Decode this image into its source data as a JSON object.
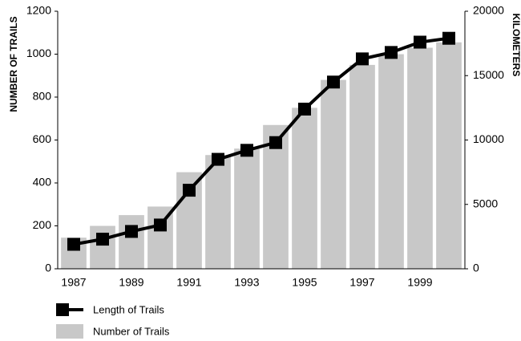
{
  "chart_data": {
    "type": "bar_line",
    "categories": [
      "1987",
      null,
      "1989",
      null,
      "1991",
      null,
      "1993",
      null,
      "1995",
      null,
      "1997",
      null,
      "1999",
      null
    ],
    "y_label": "NUMBER OF TRAILS",
    "y2_label": "KILOMETERS",
    "series": [
      {
        "name": "Length of Trails",
        "color": "#000000",
        "axis": "y2",
        "type": "line",
        "values": [
          1900,
          2300,
          2900,
          3400,
          6100,
          8500,
          9200,
          9800,
          12400,
          14500,
          16300,
          16800,
          17600,
          17900
        ]
      },
      {
        "name": "Number of Trails",
        "color": "#c8c8c8",
        "type": "bar",
        "values": [
          145,
          200,
          250,
          290,
          450,
          530,
          560,
          670,
          750,
          880,
          950,
          1000,
          1030,
          1055
        ]
      }
    ],
    "ylim": [
      0,
      1200
    ],
    "yticks": [
      0,
      200,
      400,
      600,
      800,
      1000,
      1200
    ],
    "y2lim": [
      0,
      20000
    ],
    "y2ticks": [
      0,
      5000,
      10000,
      15000,
      20000
    ]
  }
}
